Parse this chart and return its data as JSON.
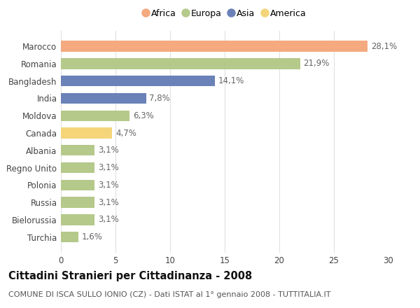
{
  "categories": [
    "Marocco",
    "Romania",
    "Bangladesh",
    "India",
    "Moldova",
    "Canada",
    "Albania",
    "Regno Unito",
    "Polonia",
    "Russia",
    "Bielorussia",
    "Turchia"
  ],
  "values": [
    28.1,
    21.9,
    14.1,
    7.8,
    6.3,
    4.7,
    3.1,
    3.1,
    3.1,
    3.1,
    3.1,
    1.6
  ],
  "labels": [
    "28,1%",
    "21,9%",
    "14,1%",
    "7,8%",
    "6,3%",
    "4,7%",
    "3,1%",
    "3,1%",
    "3,1%",
    "3,1%",
    "3,1%",
    "1,6%"
  ],
  "colors": [
    "#F4A97F",
    "#B5C98A",
    "#6B82B8",
    "#6B82B8",
    "#B5C98A",
    "#F5D57A",
    "#B5C98A",
    "#B5C98A",
    "#B5C98A",
    "#B5C98A",
    "#B5C98A",
    "#B5C98A"
  ],
  "legend_labels": [
    "Africa",
    "Europa",
    "Asia",
    "America"
  ],
  "legend_colors": [
    "#F4A97F",
    "#B5C98A",
    "#6B82B8",
    "#F5D57A"
  ],
  "title_bold": "Cittadini Stranieri per Cittadinanza - 2008",
  "subtitle": "COMUNE DI ISCA SULLO IONIO (CZ) - Dati ISTAT al 1° gennaio 2008 - TUTTITALIA.IT",
  "xlim": [
    0,
    30
  ],
  "xticks": [
    0,
    5,
    10,
    15,
    20,
    25,
    30
  ],
  "background_color": "#ffffff",
  "grid_color": "#e0e0e0",
  "bar_height": 0.62,
  "label_fontsize": 8.5,
  "tick_fontsize": 8.5,
  "title_fontsize": 10.5,
  "subtitle_fontsize": 8.0
}
